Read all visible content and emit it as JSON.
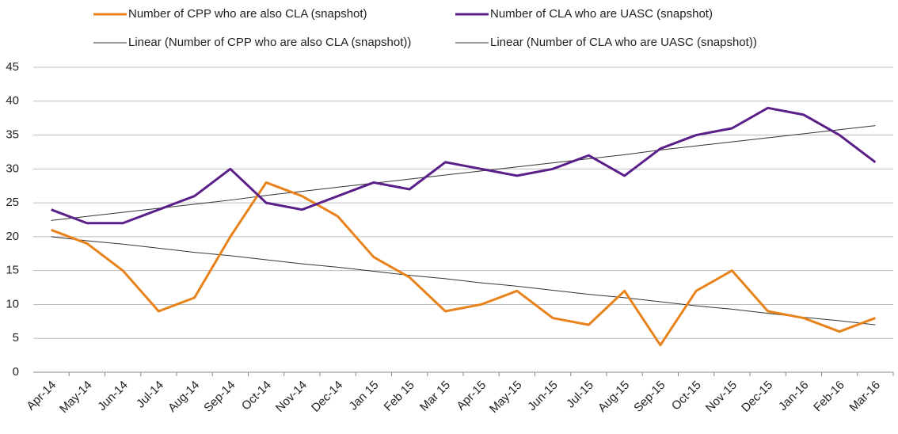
{
  "chart_data": {
    "type": "line",
    "categories": [
      "Apr-14",
      "May-14",
      "Jun-14",
      "Jul-14",
      "Aug-14",
      "Sep-14",
      "Oct-14",
      "Nov-14",
      "Dec-14",
      "Jan 15",
      "Feb 15",
      "Mar 15",
      "Apr-15",
      "May-15",
      "Jun-15",
      "Jul-15",
      "Aug-15",
      "Sep-15",
      "Oct-15",
      "Nov-15",
      "Dec-15",
      "Jan-16",
      "Feb-16",
      "Mar-16"
    ],
    "series": [
      {
        "name": "Number of CPP who are also CLA (snapshot)",
        "color": "#e8821a",
        "width": 3,
        "values": [
          21,
          19,
          15,
          9,
          11,
          20,
          28,
          26,
          23,
          17,
          14,
          9,
          10,
          12,
          8,
          7,
          12,
          4,
          12,
          15,
          9,
          8,
          6,
          8
        ]
      },
      {
        "name": "Number of CLA who are UASC (snapshot)",
        "color": "#5b1f8a",
        "width": 3,
        "values": [
          24,
          22,
          22,
          24,
          26,
          30,
          25,
          24,
          26,
          28,
          27,
          31,
          30,
          29,
          30,
          32,
          29,
          33,
          35,
          36,
          39,
          38,
          35,
          31
        ]
      },
      {
        "name": "Linear (Number of CPP who are also CLA (snapshot))",
        "color": "#333333",
        "width": 1,
        "values": [
          20,
          19.4,
          18.9,
          18.3,
          17.7,
          17.2,
          16.6,
          16.0,
          15.5,
          14.9,
          14.3,
          13.8,
          13.2,
          12.7,
          12.1,
          11.5,
          11.0,
          10.4,
          9.8,
          9.3,
          8.7,
          8.1,
          7.6,
          7.0
        ]
      },
      {
        "name": "Linear (Number of CLA who are UASC (snapshot))",
        "color": "#333333",
        "width": 1,
        "values": [
          22.4,
          23.0,
          23.6,
          24.2,
          24.8,
          25.4,
          26.1,
          26.7,
          27.3,
          27.9,
          28.5,
          29.1,
          29.7,
          30.3,
          30.9,
          31.5,
          32.1,
          32.8,
          33.4,
          34.0,
          34.6,
          35.2,
          35.8,
          36.4
        ]
      }
    ],
    "ylim": [
      0,
      45
    ],
    "yticks": [
      0,
      5,
      10,
      15,
      20,
      25,
      30,
      35,
      40,
      45
    ],
    "grid": true
  }
}
